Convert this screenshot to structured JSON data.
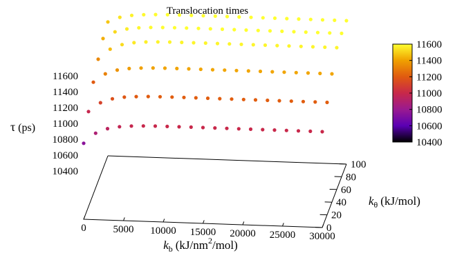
{
  "chart_data": {
    "type": "scatter",
    "title": "Translocation times",
    "zlabel_symbol": "τ",
    "zlabel_unit": "(ps)",
    "xlabel_symbol": "k",
    "xlabel_sub": "b",
    "xlabel_unit_a": "(kJ/nm",
    "xlabel_sup": "2",
    "xlabel_unit_b": "/mol)",
    "ylabel_symbol": "k",
    "ylabel_sub": "θ",
    "ylabel_unit": "(kJ/mol)",
    "xlim": [
      0,
      30000
    ],
    "ylim": [
      0,
      100
    ],
    "zlim": [
      10400,
      11600
    ],
    "x_ticks": [
      0,
      5000,
      10000,
      15000,
      20000,
      25000,
      30000
    ],
    "y_ticks": [
      0,
      20,
      40,
      60,
      80,
      100
    ],
    "z_ticks": [
      10400,
      10600,
      10800,
      11000,
      11200,
      11400,
      11600
    ],
    "colorbar": {
      "ticks": [
        10400,
        10600,
        10800,
        11000,
        11200,
        11400,
        11600
      ],
      "range": [
        10400,
        11600
      ],
      "palette": [
        "#000000",
        "#5a00b4",
        "#9a1a90",
        "#c8284a",
        "#e05a10",
        "#f0a000",
        "#ffff30"
      ]
    },
    "surface_model": {
      "series_y_values": [
        0,
        20,
        40,
        60,
        80,
        100
      ],
      "row_baselines": [
        10750,
        10990,
        11200,
        11330,
        11430,
        11480
      ],
      "row_plateaus": [
        11000,
        11210,
        11410,
        11580,
        11600,
        11600
      ],
      "rise_scale_kb": 2000,
      "row_point_counts": [
        21,
        21,
        21,
        21,
        21,
        21
      ]
    }
  }
}
